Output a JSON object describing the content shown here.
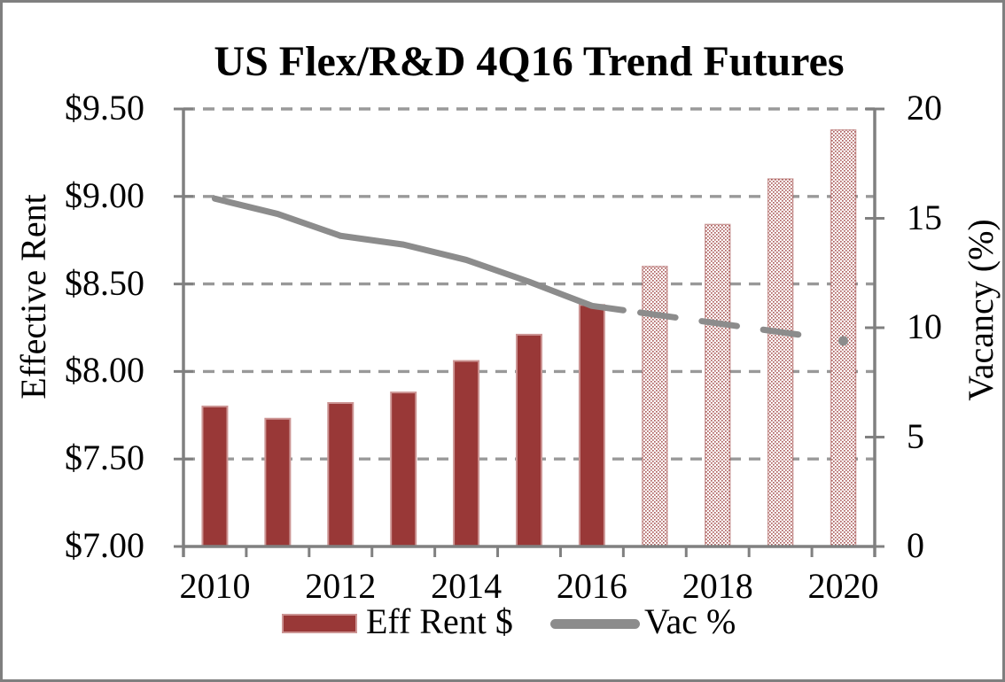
{
  "chart_data": {
    "type": "combo_bar_line",
    "title": "US Flex/R&D 4Q16 Trend Futures",
    "categories": [
      "2010",
      "2011",
      "2012",
      "2013",
      "2014",
      "2015",
      "2016",
      "2017",
      "2018",
      "2019",
      "2020"
    ],
    "series": [
      {
        "name": "Eff Rent $",
        "chart_type": "bar",
        "axis": "left",
        "values": [
          7.8,
          7.73,
          7.82,
          7.88,
          8.06,
          8.21,
          8.38,
          8.6,
          8.84,
          9.1,
          9.38
        ],
        "forecast_start_index": 7,
        "forecast_style": "dotted-pattern-bars"
      },
      {
        "name": "Vac %",
        "chart_type": "line",
        "axis": "right",
        "values": [
          15.9,
          15.2,
          14.2,
          13.8,
          13.1,
          12.1,
          11.0,
          10.6,
          10.2,
          9.8,
          9.4
        ],
        "forecast_start_index": 7,
        "forecast_style": "dashed-line-with-end-dot"
      }
    ],
    "left_axis": {
      "title": "Effective Rent",
      "min": 7.0,
      "max": 9.5,
      "ticks": [
        {
          "value": 9.5,
          "label": "$9.50"
        },
        {
          "value": 9.0,
          "label": "$9.00"
        },
        {
          "value": 8.5,
          "label": "$8.50"
        },
        {
          "value": 8.0,
          "label": "$8.00"
        },
        {
          "value": 7.5,
          "label": "$7.50"
        },
        {
          "value": 7.0,
          "label": "$7.00"
        }
      ]
    },
    "right_axis": {
      "title": "Vacancy (%)",
      "min": 0,
      "max": 20,
      "ticks": [
        {
          "value": 20,
          "label": "20"
        },
        {
          "value": 15,
          "label": "15"
        },
        {
          "value": 10,
          "label": "10"
        },
        {
          "value": 5,
          "label": "5"
        },
        {
          "value": 0,
          "label": "0"
        }
      ]
    },
    "x_axis": {
      "tick_labels": [
        {
          "index": 0,
          "label": "2010"
        },
        {
          "index": 2,
          "label": "2012"
        },
        {
          "index": 4,
          "label": "2014"
        },
        {
          "index": 6,
          "label": "2016"
        },
        {
          "index": 8,
          "label": "2018"
        },
        {
          "index": 10,
          "label": "2020"
        }
      ]
    },
    "legend": {
      "position": "bottom",
      "entries": [
        {
          "label": "Eff Rent $",
          "marker": "bar-swatch"
        },
        {
          "label": "Vac %",
          "marker": "line-swatch"
        }
      ]
    },
    "grid": "horizontal-dashed"
  },
  "colors": {
    "bar_fill": "#993837",
    "bar_border": "#cc9493",
    "forecast_dot": "#9a3b38",
    "line": "#8c8c8c",
    "gridline": "#999999",
    "axis": "#808080",
    "figure_border": "#7f7f7f",
    "text": "#000000",
    "background": "#ffffff"
  }
}
